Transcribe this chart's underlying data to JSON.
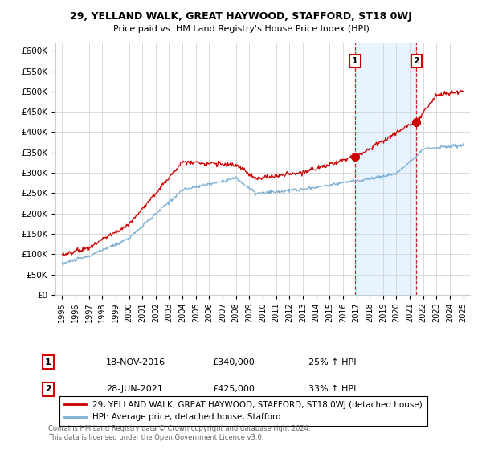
{
  "title1": "29, YELLAND WALK, GREAT HAYWOOD, STAFFORD, ST18 0WJ",
  "title2": "Price paid vs. HM Land Registry's House Price Index (HPI)",
  "ylabel_ticks": [
    "£0",
    "£50K",
    "£100K",
    "£150K",
    "£200K",
    "£250K",
    "£300K",
    "£350K",
    "£400K",
    "£450K",
    "£500K",
    "£550K",
    "£600K"
  ],
  "ytick_vals": [
    0,
    50000,
    100000,
    150000,
    200000,
    250000,
    300000,
    350000,
    400000,
    450000,
    500000,
    550000,
    600000
  ],
  "ylim": [
    0,
    620000
  ],
  "xlim_start": 1994.5,
  "xlim_end": 2025.5,
  "xtick_years": [
    1995,
    1996,
    1997,
    1998,
    1999,
    2000,
    2001,
    2002,
    2003,
    2004,
    2005,
    2006,
    2007,
    2008,
    2009,
    2010,
    2011,
    2012,
    2013,
    2014,
    2015,
    2016,
    2017,
    2018,
    2019,
    2020,
    2021,
    2022,
    2023,
    2024,
    2025
  ],
  "sale1_x": 2016.9,
  "sale1_y": 340000,
  "sale1_label": "1",
  "sale2_x": 2021.5,
  "sale2_y": 425000,
  "sale2_label": "2",
  "legend_line1": "29, YELLAND WALK, GREAT HAYWOOD, STAFFORD, ST18 0WJ (detached house)",
  "legend_line2": "HPI: Average price, detached house, Stafford",
  "ann1_date": "18-NOV-2016",
  "ann1_price": "£340,000",
  "ann1_change": "25% ↑ HPI",
  "ann2_date": "28-JUN-2021",
  "ann2_price": "£425,000",
  "ann2_change": "33% ↑ HPI",
  "footer": "Contains HM Land Registry data © Crown copyright and database right 2024.\nThis data is licensed under the Open Government Licence v3.0.",
  "color_red": "#cc0000",
  "color_blue": "#7bafd4",
  "shade_color": "#ddeeff",
  "background_color": "#ffffff",
  "grid_color": "#cccccc"
}
